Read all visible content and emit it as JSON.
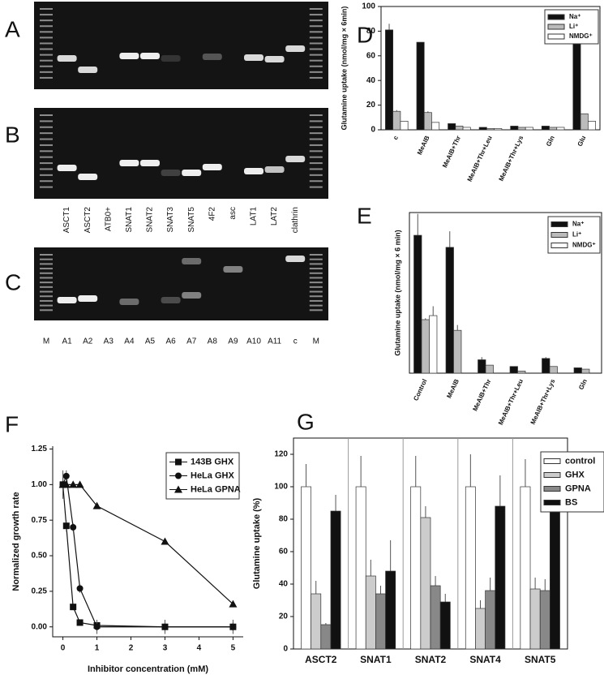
{
  "gels": {
    "panels": [
      "A",
      "B",
      "C"
    ],
    "lanes_top": [
      "ASCT1",
      "ASCT2",
      "ATB0+",
      "SNAT1",
      "SNAT2",
      "SNAT3",
      "SNAT5",
      "4F2",
      "asc",
      "LAT1",
      "LAT2",
      "clathrin"
    ],
    "lanes_bottom": [
      "M",
      "A1",
      "A2",
      "A3",
      "A4",
      "A5",
      "A6",
      "A7",
      "A8",
      "A9",
      "A10",
      "A11",
      "c",
      "M"
    ]
  },
  "chart_data": [
    {
      "panel": "D",
      "type": "bar",
      "y_label": "Glutamine uptake (nmol/mg × 6min)",
      "categories": [
        "c",
        "MeAIB",
        "MeAIB+Thr",
        "MeAIB+Thr+Leu",
        "MeAIB+Thr+Lys",
        "Gln",
        "Glu"
      ],
      "series": [
        {
          "name": "Na⁺",
          "color": "#111111",
          "values": [
            81,
            71,
            5,
            2,
            3,
            3,
            73
          ],
          "errors": [
            5,
            0,
            0,
            0,
            0,
            0,
            2
          ]
        },
        {
          "name": "Li⁺",
          "color": "#bbbbbb",
          "values": [
            15,
            14,
            3,
            1,
            2,
            2,
            13
          ],
          "errors": [
            1,
            1,
            0,
            0,
            0,
            0,
            0
          ]
        },
        {
          "name": "NMDG⁺",
          "color": "#ffffff",
          "values": [
            7,
            6,
            2,
            1,
            2,
            2,
            7
          ],
          "errors": [
            0,
            0,
            0,
            0,
            0,
            0,
            0
          ]
        }
      ],
      "ylim": [
        0,
        100
      ],
      "yticks": [
        0,
        20,
        40,
        60,
        80,
        100
      ],
      "legend": "upper right"
    },
    {
      "panel": "E",
      "type": "bar",
      "y_label": "Glutamine uptake (nmol/mg × 6 min)",
      "categories": [
        "Control",
        "MeAIB",
        "MeAIB+Thr",
        "MeAIB+Thr+Leu",
        "MeAIB+Thr+Lys",
        "Gln"
      ],
      "series": [
        {
          "name": "Na⁺",
          "color": "#111111",
          "values": [
            51.5,
            47,
            5,
            2.5,
            5.5,
            2
          ],
          "errors": [
            8,
            6,
            1,
            0,
            0.5,
            0
          ]
        },
        {
          "name": "Li⁺",
          "color": "#bbbbbb",
          "values": [
            20,
            16,
            3,
            0.8,
            2.5,
            1.5
          ],
          "errors": [
            0.5,
            2,
            0,
            0,
            0,
            0
          ]
        },
        {
          "name": "NMDG⁺",
          "color": "#ffffff",
          "values": [
            21.5,
            null,
            null,
            null,
            null,
            null
          ],
          "errors": [
            3.5,
            null,
            null,
            null,
            null,
            null
          ]
        }
      ],
      "ylim": [
        0,
        60
      ],
      "legend": "upper right"
    },
    {
      "panel": "F",
      "type": "line",
      "x_label": "Inhibitor concentration (mM)",
      "y_label": "Normalized growth rate",
      "x": [
        0,
        0.1,
        0.3,
        0.5,
        1,
        3,
        5
      ],
      "series": [
        {
          "name": "143B GHX",
          "color": "#111111",
          "marker": "square",
          "values": [
            1.0,
            0.71,
            0.14,
            0.03,
            0.01,
            0.0,
            0.0
          ],
          "errors": [
            0.05,
            0.04,
            0.02,
            0.02,
            0.02,
            0.03,
            0.03
          ]
        },
        {
          "name": "HeLa GHX",
          "color": "#111111",
          "marker": "circle",
          "values": [
            1.0,
            1.06,
            0.7,
            0.27,
            0.0,
            0.0,
            0.0
          ],
          "errors": [
            0.1,
            0.04,
            0.03,
            0.03,
            0.05,
            0.05,
            0.05
          ]
        },
        {
          "name": "HeLa GPNA",
          "color": "#111111",
          "marker": "triangle",
          "values": [
            1.0,
            1.0,
            1.0,
            1.0,
            0.85,
            0.6,
            0.16
          ],
          "errors": [
            0.08,
            0.02,
            0.02,
            0.02,
            0.02,
            0.02,
            0.02
          ]
        }
      ],
      "xlim": [
        -0.3,
        5.3
      ],
      "xticks": [
        0,
        1,
        2,
        3,
        4,
        5
      ],
      "ylim": [
        -0.07,
        1.27
      ],
      "yticks": [
        {
          "value": 0,
          "label": "0.00"
        },
        {
          "value": 0.25,
          "label": "0.25"
        },
        {
          "value": 0.5,
          "label": "0.50"
        },
        {
          "value": 0.75,
          "label": "0.75"
        },
        {
          "value": 1,
          "label": "1.00"
        },
        {
          "value": 1.25,
          "label": "1.25"
        }
      ],
      "legend": "upper right"
    },
    {
      "panel": "G",
      "type": "bar",
      "y_label": "Glutamine uptake (%)",
      "categories": [
        "ASCT2",
        "SNAT1",
        "SNAT2",
        "SNAT4",
        "SNAT5"
      ],
      "series": [
        {
          "name": "control",
          "color": "#ffffff",
          "values": [
            100,
            100,
            100,
            100,
            100
          ],
          "errors": [
            14,
            19,
            19,
            20,
            17
          ]
        },
        {
          "name": "GHX",
          "color": "#cccccc",
          "values": [
            34,
            45,
            81,
            25,
            37
          ],
          "errors": [
            8,
            10,
            7,
            5,
            7
          ]
        },
        {
          "name": "GPNA",
          "color": "#888888",
          "values": [
            15,
            34,
            39,
            36,
            36
          ],
          "errors": [
            1,
            5,
            6,
            8,
            7
          ]
        },
        {
          "name": "BS",
          "color": "#111111",
          "values": [
            85,
            48,
            29,
            88,
            96
          ],
          "errors": [
            10,
            19,
            5,
            19,
            11
          ]
        }
      ],
      "ylim": [
        0,
        130
      ],
      "yticks": [
        0,
        20,
        40,
        60,
        80,
        100,
        120
      ],
      "legend": "upper right"
    }
  ]
}
